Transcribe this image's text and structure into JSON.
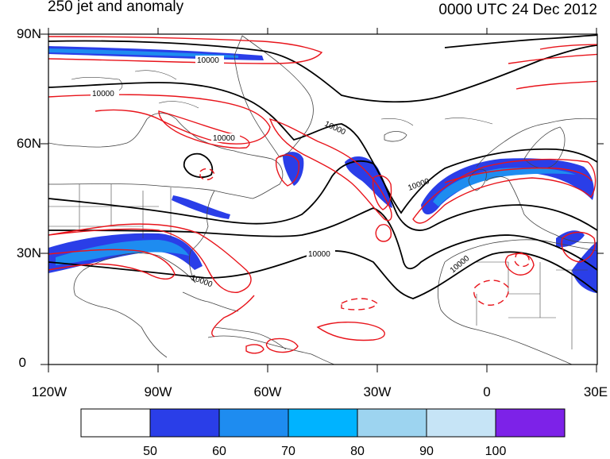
{
  "title": "250 jet and anomaly",
  "timestamp": "0000 UTC 24 Dec 2012",
  "lat_labels": [
    "90N",
    "60N",
    "30N",
    "0"
  ],
  "lon_labels": [
    "120W",
    "90W",
    "60W",
    "30W",
    "0",
    "30E"
  ],
  "contour_label": "10000",
  "colorbar": {
    "labels": [
      "50",
      "60",
      "70",
      "80",
      "90",
      "100"
    ],
    "colors": [
      "#ffffff",
      "#2a3ee8",
      "#1e8cf0",
      "#00b3ff",
      "#9dd4f0",
      "#c6e4f6",
      "#7d22e8"
    ]
  },
  "colors": {
    "height_contour": "#000000",
    "anomaly_contour": "#e8141b",
    "coastline": "#444444"
  }
}
